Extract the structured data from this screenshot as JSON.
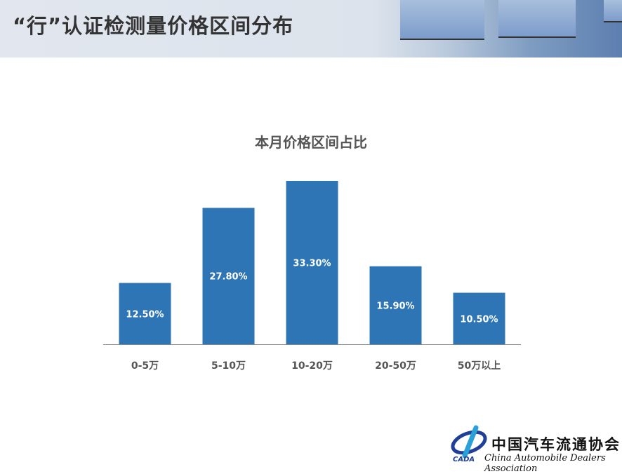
{
  "header": {
    "title": "“行”认证检测量价格区间分布"
  },
  "logo": {
    "name_cn": "中国汽车流通协会",
    "name_en": "China Automobile Dealers Association",
    "abbr": "CADA"
  },
  "chart_data": {
    "type": "bar",
    "title": "本月价格区间占比",
    "categories": [
      "0-5万",
      "5-10万",
      "10-20万",
      "20-50万",
      "50万以上"
    ],
    "values": [
      12.5,
      27.8,
      33.3,
      15.9,
      10.5
    ],
    "labels": [
      "12.50%",
      "27.80%",
      "33.30%",
      "15.90%",
      "10.50%"
    ],
    "unit": "%",
    "ylim": [
      0,
      35
    ],
    "grid": false,
    "color": "#2e75b6"
  }
}
